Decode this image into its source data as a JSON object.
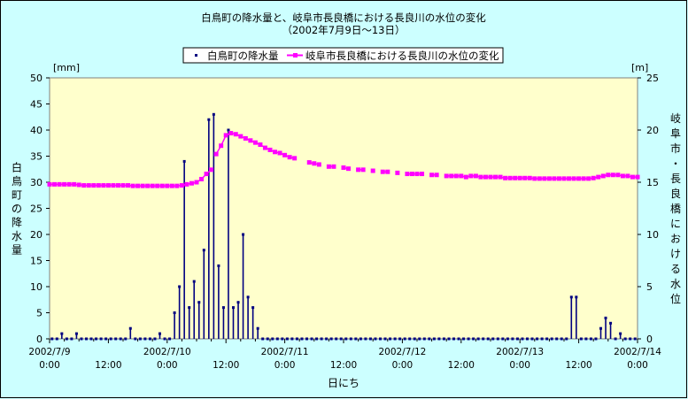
{
  "chart_data": {
    "type": "bar+line",
    "title": "白鳥町の降水量と、岐阜市長良橋における長良川の水位の変化",
    "subtitle": "（2002年7月9日～13日）",
    "xlabel": "日にち",
    "ylabel_left": "白鳥町の降水量",
    "ylabel_right": "岐阜市・長良橋における水位",
    "unit_left": "[mm]",
    "unit_right": "[m]",
    "ylim_left": [
      0,
      50
    ],
    "ylim_right": [
      0,
      25
    ],
    "yticks_left": [
      0,
      5,
      10,
      15,
      20,
      25,
      30,
      35,
      40,
      45,
      50
    ],
    "yticks_right": [
      0,
      5,
      10,
      15,
      20,
      25
    ],
    "x_range_hours": [
      0,
      120
    ],
    "xticks": [
      {
        "h": 0,
        "line1": "2002/7/9",
        "line2": "0:00"
      },
      {
        "h": 12,
        "line1": "",
        "line2": "12:00"
      },
      {
        "h": 24,
        "line1": "2002/7/10",
        "line2": "0:00"
      },
      {
        "h": 36,
        "line1": "",
        "line2": "12:00"
      },
      {
        "h": 48,
        "line1": "2002/7/11",
        "line2": "0:00"
      },
      {
        "h": 60,
        "line1": "",
        "line2": "12:00"
      },
      {
        "h": 72,
        "line1": "2002/7/12",
        "line2": "0:00"
      },
      {
        "h": 84,
        "line1": "",
        "line2": "12:00"
      },
      {
        "h": 96,
        "line1": "2002/7/13",
        "line2": "0:00"
      },
      {
        "h": 108,
        "line1": "",
        "line2": "12:00"
      },
      {
        "h": 120,
        "line1": "2002/7/14",
        "line2": "0:00"
      }
    ],
    "series": [
      {
        "name": "白鳥町の降水量",
        "axis": "left",
        "color": "#000080",
        "values": [
          0,
          0,
          1,
          0,
          0,
          1,
          0,
          0,
          0,
          0,
          0,
          0,
          0,
          0,
          0,
          0,
          2,
          0,
          0,
          0,
          0,
          0,
          1,
          0,
          0,
          5,
          10,
          34,
          6,
          11,
          7,
          17,
          42,
          43,
          14,
          6,
          40,
          6,
          7,
          20,
          8,
          6,
          2,
          0,
          0,
          0,
          0,
          0,
          0,
          0,
          0,
          0,
          0,
          0,
          0,
          0,
          0,
          0,
          0,
          0,
          0,
          0,
          0,
          0,
          0,
          0,
          0,
          0,
          0,
          0,
          0,
          0,
          0,
          0,
          0,
          0,
          0,
          0,
          0,
          0,
          0,
          0,
          0,
          0,
          0,
          0,
          0,
          0,
          0,
          0,
          0,
          0,
          0,
          0,
          0,
          0,
          0,
          0,
          0,
          0,
          0,
          0,
          0,
          0,
          0,
          0,
          8,
          8,
          0,
          0,
          0,
          0,
          2,
          4,
          3,
          0,
          1,
          0,
          0,
          0
        ]
      },
      {
        "name": "岐阜市長良橋における長良川の水位の変化",
        "axis": "right",
        "color": "#ff00ff",
        "points": [
          [
            0,
            14.8
          ],
          [
            1,
            14.8
          ],
          [
            2,
            14.8
          ],
          [
            3,
            14.8
          ],
          [
            4,
            14.8
          ],
          [
            5,
            14.8
          ],
          [
            6,
            14.75
          ],
          [
            7,
            14.7
          ],
          [
            8,
            14.7
          ],
          [
            9,
            14.7
          ],
          [
            10,
            14.7
          ],
          [
            11,
            14.7
          ],
          [
            12,
            14.7
          ],
          [
            13,
            14.7
          ],
          [
            14,
            14.7
          ],
          [
            15,
            14.7
          ],
          [
            16,
            14.7
          ],
          [
            17,
            14.65
          ],
          [
            18,
            14.65
          ],
          [
            19,
            14.65
          ],
          [
            20,
            14.65
          ],
          [
            21,
            14.65
          ],
          [
            22,
            14.65
          ],
          [
            23,
            14.65
          ],
          [
            24,
            14.65
          ],
          [
            25,
            14.65
          ],
          [
            26,
            14.65
          ],
          [
            27,
            14.7
          ],
          [
            28,
            14.8
          ],
          [
            29,
            14.9
          ],
          [
            30,
            15
          ],
          [
            31,
            15.3
          ],
          [
            32,
            15.8
          ],
          [
            33,
            16.2
          ],
          null,
          [
            34,
            17.7
          ],
          [
            35,
            18.5
          ],
          [
            36,
            19.5
          ],
          [
            37,
            19.7
          ],
          [
            38,
            19.6
          ],
          [
            39,
            19.4
          ],
          [
            40,
            19.2
          ],
          [
            41,
            19
          ],
          [
            42,
            18.8
          ],
          [
            43,
            18.6
          ],
          [
            44,
            18.3
          ],
          [
            45,
            18.1
          ],
          [
            46,
            17.9
          ],
          [
            47,
            17.8
          ],
          [
            48,
            17.6
          ],
          [
            49,
            17.4
          ],
          [
            50,
            17.3
          ],
          null,
          [
            53,
            16.9
          ],
          [
            54,
            16.8
          ],
          [
            55,
            16.7
          ],
          null,
          [
            57,
            16.5
          ],
          [
            58,
            16.5
          ],
          null,
          [
            60,
            16.4
          ],
          [
            61,
            16.3
          ],
          null,
          [
            63,
            16.2
          ],
          [
            64,
            16.2
          ],
          null,
          [
            66,
            16.1
          ],
          null,
          [
            68,
            16
          ],
          [
            69,
            16
          ],
          null,
          [
            71,
            15.9
          ],
          null,
          [
            73,
            15.8
          ],
          [
            74,
            15.8
          ],
          [
            75,
            15.8
          ],
          [
            76,
            15.8
          ],
          null,
          [
            78,
            15.7
          ],
          [
            79,
            15.7
          ],
          null,
          [
            81,
            15.6
          ],
          [
            82,
            15.6
          ],
          [
            83,
            15.6
          ],
          [
            84,
            15.6
          ],
          [
            85,
            15.5
          ],
          [
            86,
            15.6
          ],
          [
            87,
            15.6
          ],
          [
            88,
            15.5
          ],
          [
            89,
            15.5
          ],
          [
            90,
            15.5
          ],
          [
            91,
            15.5
          ],
          [
            92,
            15.5
          ],
          [
            93,
            15.4
          ],
          [
            94,
            15.4
          ],
          [
            95,
            15.4
          ],
          [
            96,
            15.4
          ],
          [
            97,
            15.4
          ],
          [
            98,
            15.4
          ],
          [
            99,
            15.35
          ],
          [
            100,
            15.35
          ],
          [
            101,
            15.35
          ],
          [
            102,
            15.35
          ],
          [
            103,
            15.35
          ],
          [
            104,
            15.35
          ],
          [
            105,
            15.35
          ],
          [
            106,
            15.35
          ],
          [
            107,
            15.35
          ],
          [
            108,
            15.35
          ],
          [
            109,
            15.35
          ],
          [
            110,
            15.35
          ],
          [
            111,
            15.4
          ],
          [
            112,
            15.5
          ],
          [
            113,
            15.6
          ],
          [
            114,
            15.7
          ],
          [
            115,
            15.7
          ],
          [
            116,
            15.7
          ],
          [
            117,
            15.6
          ],
          [
            118,
            15.6
          ],
          [
            119,
            15.5
          ],
          [
            120,
            15.5
          ]
        ]
      }
    ]
  }
}
